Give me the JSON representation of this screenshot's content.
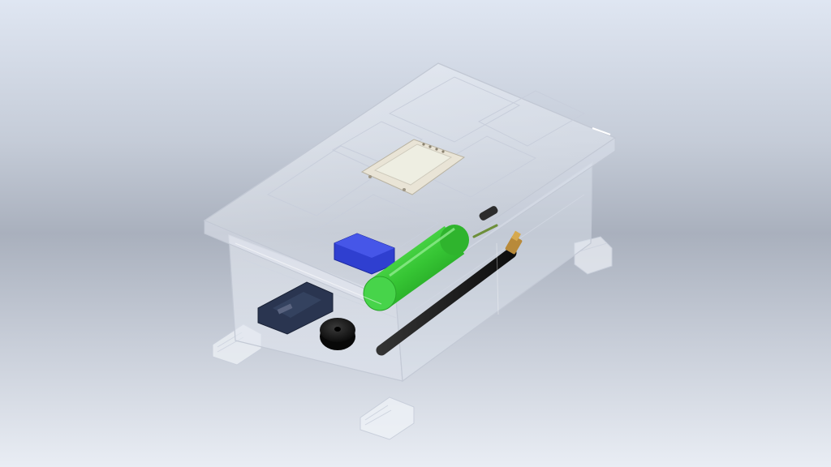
{
  "scene": {
    "description_kind": "3d-cad-render",
    "palette": {
      "background_top": "#dfe6f2",
      "background_mid": "#a9b0bd",
      "enclosure": "#e8edf5",
      "battery": "#3ec83a",
      "blue_module": "#2f3fd0",
      "pcb": "#2a3550",
      "antenna": "#1c1c1c",
      "connector": "#b88a3a"
    },
    "components": [
      "clear-enclosure",
      "enclosure-lid",
      "oled-display-module",
      "battery-cell",
      "blue-module",
      "pcb-board",
      "buzzer",
      "antenna",
      "sma-connector",
      "small-component",
      "mounting-feet"
    ]
  }
}
